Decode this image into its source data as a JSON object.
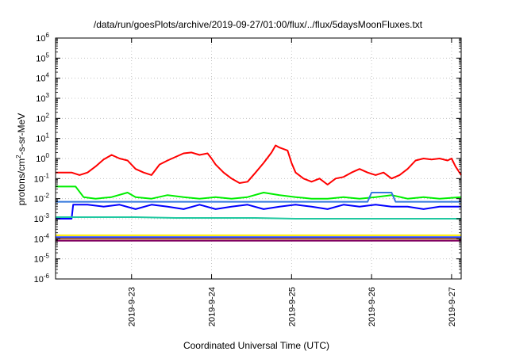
{
  "chart_data": {
    "type": "line",
    "title": "/data/run/goesPlots/archive/2019-09-27/01:00/flux/../flux/5daysMoonFluxes.txt",
    "xlabel": "Coordinated Universal Time (UTC)",
    "ylabel": {
      "base": "protons/cm",
      "sup": "2",
      "rest": "-s-sr-MeV"
    },
    "yscale": "log",
    "ylim_exp": [
      -6,
      6
    ],
    "ytick_exponents": [
      -6,
      -5,
      -4,
      -3,
      -2,
      -1,
      0,
      1,
      2,
      3,
      4,
      5,
      6
    ],
    "ytick_base": "10",
    "xlim_days": [
      0,
      5.07
    ],
    "xticks": [
      {
        "label": "2019-9-23",
        "day": 0.95
      },
      {
        "label": "2019-9-24",
        "day": 1.95
      },
      {
        "label": "2019-9-25",
        "day": 2.95
      },
      {
        "label": "2019-9-26",
        "day": 3.95
      },
      {
        "label": "2019-9-27",
        "day": 4.95
      }
    ],
    "grid": true,
    "series": [
      {
        "color": "#ff0000",
        "points": [
          [
            0,
            0.2
          ],
          [
            0.2,
            0.2
          ],
          [
            0.3,
            0.15
          ],
          [
            0.4,
            0.2
          ],
          [
            0.5,
            0.4
          ],
          [
            0.6,
            0.9
          ],
          [
            0.7,
            1.5
          ],
          [
            0.8,
            1.0
          ],
          [
            0.9,
            0.8
          ],
          [
            1.0,
            0.3
          ],
          [
            1.1,
            0.2
          ],
          [
            1.2,
            0.15
          ],
          [
            1.3,
            0.5
          ],
          [
            1.4,
            0.8
          ],
          [
            1.5,
            1.2
          ],
          [
            1.6,
            1.8
          ],
          [
            1.7,
            2.0
          ],
          [
            1.8,
            1.5
          ],
          [
            1.9,
            1.8
          ],
          [
            1.95,
            1.0
          ],
          [
            2.0,
            0.5
          ],
          [
            2.1,
            0.2
          ],
          [
            2.2,
            0.1
          ],
          [
            2.3,
            0.06
          ],
          [
            2.4,
            0.07
          ],
          [
            2.5,
            0.2
          ],
          [
            2.6,
            0.6
          ],
          [
            2.7,
            2.0
          ],
          [
            2.75,
            4.5
          ],
          [
            2.8,
            3.5
          ],
          [
            2.9,
            2.5
          ],
          [
            2.95,
            0.6
          ],
          [
            3.0,
            0.2
          ],
          [
            3.1,
            0.1
          ],
          [
            3.2,
            0.07
          ],
          [
            3.3,
            0.1
          ],
          [
            3.4,
            0.05
          ],
          [
            3.5,
            0.1
          ],
          [
            3.6,
            0.12
          ],
          [
            3.7,
            0.2
          ],
          [
            3.8,
            0.3
          ],
          [
            3.9,
            0.2
          ],
          [
            4.0,
            0.15
          ],
          [
            4.1,
            0.2
          ],
          [
            4.2,
            0.1
          ],
          [
            4.3,
            0.15
          ],
          [
            4.4,
            0.3
          ],
          [
            4.5,
            0.8
          ],
          [
            4.6,
            1.0
          ],
          [
            4.7,
            0.9
          ],
          [
            4.8,
            1.0
          ],
          [
            4.9,
            0.8
          ],
          [
            4.95,
            1.0
          ],
          [
            5.0,
            0.4
          ],
          [
            5.07,
            0.15
          ]
        ]
      },
      {
        "color": "#00ee00",
        "points": [
          [
            0,
            0.04
          ],
          [
            0.25,
            0.04
          ],
          [
            0.35,
            0.012
          ],
          [
            0.5,
            0.01
          ],
          [
            0.7,
            0.012
          ],
          [
            0.9,
            0.02
          ],
          [
            1.0,
            0.012
          ],
          [
            1.2,
            0.01
          ],
          [
            1.4,
            0.015
          ],
          [
            1.6,
            0.012
          ],
          [
            1.8,
            0.01
          ],
          [
            2.0,
            0.012
          ],
          [
            2.2,
            0.01
          ],
          [
            2.4,
            0.012
          ],
          [
            2.6,
            0.02
          ],
          [
            2.8,
            0.015
          ],
          [
            3.0,
            0.012
          ],
          [
            3.2,
            0.01
          ],
          [
            3.4,
            0.01
          ],
          [
            3.6,
            0.012
          ],
          [
            3.8,
            0.01
          ],
          [
            4.0,
            0.012
          ],
          [
            4.2,
            0.015
          ],
          [
            4.4,
            0.01
          ],
          [
            4.6,
            0.012
          ],
          [
            4.8,
            0.01
          ],
          [
            5.07,
            0.012
          ]
        ]
      },
      {
        "color": "#0000ff",
        "points": [
          [
            0,
            0.001
          ],
          [
            0.2,
            0.001
          ],
          [
            0.22,
            0.005
          ],
          [
            0.4,
            0.005
          ],
          [
            0.6,
            0.004
          ],
          [
            0.8,
            0.005
          ],
          [
            1.0,
            0.003
          ],
          [
            1.2,
            0.005
          ],
          [
            1.4,
            0.004
          ],
          [
            1.6,
            0.003
          ],
          [
            1.8,
            0.005
          ],
          [
            2.0,
            0.003
          ],
          [
            2.2,
            0.004
          ],
          [
            2.4,
            0.005
          ],
          [
            2.6,
            0.003
          ],
          [
            2.8,
            0.004
          ],
          [
            3.0,
            0.005
          ],
          [
            3.2,
            0.004
          ],
          [
            3.4,
            0.003
          ],
          [
            3.6,
            0.005
          ],
          [
            3.8,
            0.004
          ],
          [
            4.0,
            0.005
          ],
          [
            4.2,
            0.004
          ],
          [
            4.4,
            0.004
          ],
          [
            4.6,
            0.003
          ],
          [
            4.8,
            0.004
          ],
          [
            5.07,
            0.004
          ]
        ]
      },
      {
        "color": "#3377dd",
        "points": [
          [
            0,
            0.007
          ],
          [
            0.5,
            0.007
          ],
          [
            1.0,
            0.007
          ],
          [
            1.5,
            0.007
          ],
          [
            2.0,
            0.007
          ],
          [
            2.5,
            0.007
          ],
          [
            3.0,
            0.007
          ],
          [
            3.5,
            0.007
          ],
          [
            3.9,
            0.007
          ],
          [
            3.95,
            0.02
          ],
          [
            4.2,
            0.02
          ],
          [
            4.25,
            0.007
          ],
          [
            4.6,
            0.007
          ],
          [
            5.07,
            0.007
          ]
        ]
      },
      {
        "color": "#20c8a0",
        "points": [
          [
            0,
            0.0012
          ],
          [
            0.5,
            0.0012
          ],
          [
            1.0,
            0.0012
          ],
          [
            1.5,
            0.0011
          ],
          [
            2.0,
            0.0011
          ],
          [
            2.5,
            0.0011
          ],
          [
            3.0,
            0.001
          ],
          [
            3.5,
            0.001
          ],
          [
            4.0,
            0.001
          ],
          [
            4.5,
            0.001
          ],
          [
            5.07,
            0.001
          ]
        ]
      },
      {
        "color": "#ffee00",
        "points": [
          [
            0,
            0.00015
          ],
          [
            0.5,
            0.00015
          ],
          [
            1.0,
            0.00015
          ],
          [
            1.5,
            0.00015
          ],
          [
            2.0,
            0.00015
          ],
          [
            2.5,
            0.00015
          ],
          [
            3.0,
            0.00015
          ],
          [
            3.5,
            0.00015
          ],
          [
            4.0,
            0.00015
          ],
          [
            4.5,
            0.00015
          ],
          [
            5.07,
            0.00015
          ]
        ]
      },
      {
        "color": "#1e40ff",
        "points": [
          [
            0,
            0.00012
          ],
          [
            1.0,
            0.00012
          ],
          [
            2.0,
            0.00012
          ],
          [
            3.0,
            0.00012
          ],
          [
            4.0,
            0.00012
          ],
          [
            5.07,
            0.00012
          ]
        ]
      },
      {
        "color": "#a0522d",
        "points": [
          [
            0,
            0.0001
          ],
          [
            0.5,
            0.0001
          ],
          [
            1.0,
            0.0001
          ],
          [
            1.5,
            0.0001
          ],
          [
            2.0,
            0.0001
          ],
          [
            2.5,
            0.0001
          ],
          [
            3.0,
            0.0001
          ],
          [
            3.5,
            0.0001
          ],
          [
            4.0,
            0.0001
          ],
          [
            4.5,
            0.0001
          ],
          [
            5.07,
            0.0001
          ]
        ]
      },
      {
        "color": "#800060",
        "points": [
          [
            0,
            8e-05
          ],
          [
            1.0,
            8e-05
          ],
          [
            2.0,
            8e-05
          ],
          [
            3.0,
            8e-05
          ],
          [
            4.0,
            8e-05
          ],
          [
            5.07,
            8e-05
          ]
        ]
      }
    ]
  }
}
